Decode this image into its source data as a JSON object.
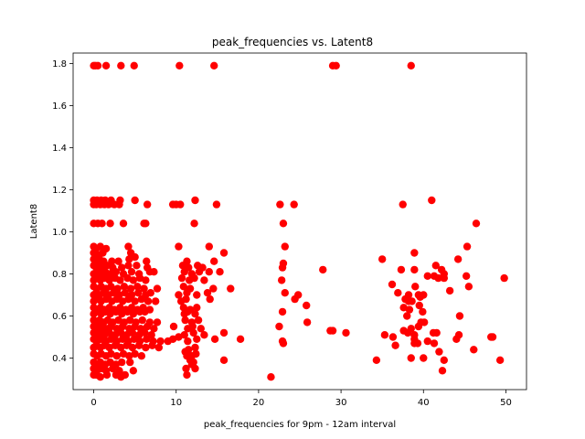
{
  "chart_data": {
    "type": "scatter",
    "title": "peak_frequencies vs. Latent8",
    "xlabel": "peak_frequencies for 9pm - 12am interval",
    "ylabel": "Latent8",
    "xlim": [
      -2.5,
      52.5
    ],
    "ylim": [
      0.25,
      1.85
    ],
    "xticks": [
      0,
      10,
      20,
      30,
      40,
      50
    ],
    "yticks": [
      0.4,
      0.6,
      0.8,
      1.0,
      1.2,
      1.4,
      1.6,
      1.8
    ],
    "grid": false,
    "marker_color": "#ff0000",
    "points": [
      [
        0,
        1.79
      ],
      [
        0.2,
        1.79
      ],
      [
        0.5,
        1.79
      ],
      [
        1.5,
        1.79
      ],
      [
        3.3,
        1.79
      ],
      [
        4.9,
        1.79
      ],
      [
        10.4,
        1.79
      ],
      [
        14.6,
        1.79
      ],
      [
        29,
        1.79
      ],
      [
        29.4,
        1.79
      ],
      [
        38.5,
        1.79
      ],
      [
        0,
        1.15
      ],
      [
        0.4,
        1.15
      ],
      [
        0.9,
        1.15
      ],
      [
        1.4,
        1.15
      ],
      [
        2.1,
        1.15
      ],
      [
        3.2,
        1.15
      ],
      [
        5,
        1.15
      ],
      [
        12.3,
        1.15
      ],
      [
        41,
        1.15
      ],
      [
        0,
        1.13
      ],
      [
        0.3,
        1.13
      ],
      [
        0.8,
        1.13
      ],
      [
        1.3,
        1.13
      ],
      [
        1.8,
        1.13
      ],
      [
        2.5,
        1.13
      ],
      [
        3.1,
        1.13
      ],
      [
        6.5,
        1.13
      ],
      [
        9.6,
        1.13
      ],
      [
        10,
        1.13
      ],
      [
        10.5,
        1.13
      ],
      [
        14.9,
        1.13
      ],
      [
        22.6,
        1.13
      ],
      [
        24.3,
        1.13
      ],
      [
        37.5,
        1.13
      ],
      [
        0,
        1.04
      ],
      [
        0.5,
        1.04
      ],
      [
        1,
        1.04
      ],
      [
        2,
        1.04
      ],
      [
        3.6,
        1.04
      ],
      [
        6.1,
        1.04
      ],
      [
        6.3,
        1.04
      ],
      [
        12.2,
        1.04
      ],
      [
        23,
        1.04
      ],
      [
        46.4,
        1.04
      ],
      [
        0,
        0.93
      ],
      [
        0.3,
        0.92
      ],
      [
        0.8,
        0.93
      ],
      [
        1.5,
        0.92
      ],
      [
        4.2,
        0.93
      ],
      [
        10.3,
        0.93
      ],
      [
        14,
        0.93
      ],
      [
        23.2,
        0.93
      ],
      [
        45.3,
        0.93
      ],
      [
        0,
        0.9
      ],
      [
        0.5,
        0.89
      ],
      [
        1.1,
        0.9
      ],
      [
        4.5,
        0.9
      ],
      [
        5,
        0.88
      ],
      [
        15.8,
        0.9
      ],
      [
        38.9,
        0.9
      ],
      [
        0,
        0.87
      ],
      [
        0.3,
        0.86
      ],
      [
        0.7,
        0.87
      ],
      [
        1.2,
        0.86
      ],
      [
        2.2,
        0.86
      ],
      [
        3,
        0.86
      ],
      [
        4.3,
        0.87
      ],
      [
        6.4,
        0.86
      ],
      [
        11.3,
        0.86
      ],
      [
        14.6,
        0.86
      ],
      [
        23,
        0.85
      ],
      [
        35,
        0.87
      ],
      [
        41.5,
        0.84
      ],
      [
        44.2,
        0.87
      ],
      [
        0,
        0.84
      ],
      [
        0.3,
        0.83
      ],
      [
        0.6,
        0.84
      ],
      [
        1.1,
        0.83
      ],
      [
        1.6,
        0.84
      ],
      [
        2.3,
        0.83
      ],
      [
        3.4,
        0.83
      ],
      [
        4.2,
        0.84
      ],
      [
        5.2,
        0.84
      ],
      [
        6.5,
        0.83
      ],
      [
        10.8,
        0.84
      ],
      [
        11.5,
        0.83
      ],
      [
        12.6,
        0.84
      ],
      [
        13.2,
        0.83
      ],
      [
        22.9,
        0.83
      ],
      [
        27.8,
        0.82
      ],
      [
        37.3,
        0.82
      ],
      [
        38.9,
        0.82
      ],
      [
        42.2,
        0.82
      ],
      [
        0,
        0.8
      ],
      [
        0.4,
        0.81
      ],
      [
        0.9,
        0.8
      ],
      [
        1.4,
        0.81
      ],
      [
        2,
        0.8
      ],
      [
        2.7,
        0.81
      ],
      [
        3.6,
        0.8
      ],
      [
        4.6,
        0.81
      ],
      [
        5.5,
        0.8
      ],
      [
        6.8,
        0.81
      ],
      [
        7.3,
        0.81
      ],
      [
        11,
        0.81
      ],
      [
        11.9,
        0.8
      ],
      [
        12.8,
        0.81
      ],
      [
        14,
        0.81
      ],
      [
        15.3,
        0.81
      ],
      [
        41.3,
        0.79
      ],
      [
        42.5,
        0.8
      ],
      [
        45.2,
        0.79
      ],
      [
        0,
        0.77
      ],
      [
        0.3,
        0.78
      ],
      [
        0.8,
        0.77
      ],
      [
        1.3,
        0.78
      ],
      [
        1.9,
        0.77
      ],
      [
        2.6,
        0.78
      ],
      [
        3.2,
        0.77
      ],
      [
        4.1,
        0.78
      ],
      [
        4.8,
        0.77
      ],
      [
        5.6,
        0.78
      ],
      [
        6.3,
        0.77
      ],
      [
        10.7,
        0.78
      ],
      [
        11.6,
        0.77
      ],
      [
        12.2,
        0.78
      ],
      [
        13.4,
        0.77
      ],
      [
        22.8,
        0.77
      ],
      [
        40.5,
        0.79
      ],
      [
        41.8,
        0.78
      ],
      [
        42.5,
        0.78
      ],
      [
        49.8,
        0.78
      ],
      [
        0,
        0.74
      ],
      [
        0.4,
        0.73
      ],
      [
        0.9,
        0.74
      ],
      [
        1.5,
        0.73
      ],
      [
        2.1,
        0.74
      ],
      [
        2.9,
        0.73
      ],
      [
        3.7,
        0.74
      ],
      [
        4.5,
        0.73
      ],
      [
        5.3,
        0.74
      ],
      [
        6.1,
        0.73
      ],
      [
        7.7,
        0.73
      ],
      [
        10.9,
        0.74
      ],
      [
        11.7,
        0.73
      ],
      [
        14.5,
        0.73
      ],
      [
        16.6,
        0.73
      ],
      [
        36.2,
        0.75
      ],
      [
        39,
        0.74
      ],
      [
        43.2,
        0.72
      ],
      [
        45.5,
        0.74
      ],
      [
        0,
        0.7
      ],
      [
        0.3,
        0.71
      ],
      [
        0.7,
        0.7
      ],
      [
        1.2,
        0.71
      ],
      [
        1.8,
        0.7
      ],
      [
        2.4,
        0.71
      ],
      [
        3.1,
        0.7
      ],
      [
        3.8,
        0.71
      ],
      [
        4.6,
        0.7
      ],
      [
        5.4,
        0.71
      ],
      [
        6.3,
        0.7
      ],
      [
        6.9,
        0.71
      ],
      [
        10.3,
        0.7
      ],
      [
        11.3,
        0.71
      ],
      [
        12.5,
        0.7
      ],
      [
        13.8,
        0.71
      ],
      [
        23.2,
        0.71
      ],
      [
        24.8,
        0.7
      ],
      [
        36.9,
        0.71
      ],
      [
        38.2,
        0.7
      ],
      [
        39.4,
        0.7
      ],
      [
        40,
        0.7
      ],
      [
        0,
        0.67
      ],
      [
        0.4,
        0.68
      ],
      [
        0.9,
        0.67
      ],
      [
        1.5,
        0.68
      ],
      [
        2.2,
        0.67
      ],
      [
        2.8,
        0.68
      ],
      [
        3.5,
        0.67
      ],
      [
        4.2,
        0.68
      ],
      [
        5,
        0.67
      ],
      [
        5.8,
        0.68
      ],
      [
        6.6,
        0.67
      ],
      [
        7.5,
        0.67
      ],
      [
        10.6,
        0.67
      ],
      [
        11.2,
        0.68
      ],
      [
        14.1,
        0.68
      ],
      [
        24.4,
        0.68
      ],
      [
        37.8,
        0.68
      ],
      [
        38.2,
        0.67
      ],
      [
        38.6,
        0.67
      ],
      [
        39.6,
        0.69
      ],
      [
        0,
        0.64
      ],
      [
        0.3,
        0.63
      ],
      [
        0.8,
        0.64
      ],
      [
        1.3,
        0.63
      ],
      [
        1.9,
        0.64
      ],
      [
        2.5,
        0.63
      ],
      [
        3.2,
        0.64
      ],
      [
        3.9,
        0.63
      ],
      [
        4.6,
        0.64
      ],
      [
        5.3,
        0.63
      ],
      [
        6,
        0.64
      ],
      [
        6.8,
        0.63
      ],
      [
        10.9,
        0.64
      ],
      [
        11.7,
        0.63
      ],
      [
        12.5,
        0.64
      ],
      [
        25.8,
        0.65
      ],
      [
        37.6,
        0.64
      ],
      [
        38.3,
        0.63
      ],
      [
        39.5,
        0.65
      ],
      [
        0,
        0.61
      ],
      [
        0.4,
        0.62
      ],
      [
        0.9,
        0.61
      ],
      [
        1.4,
        0.62
      ],
      [
        2,
        0.61
      ],
      [
        2.7,
        0.62
      ],
      [
        3.4,
        0.61
      ],
      [
        4.1,
        0.62
      ],
      [
        4.8,
        0.61
      ],
      [
        5.6,
        0.62
      ],
      [
        6.2,
        0.62
      ],
      [
        11,
        0.61
      ],
      [
        11.4,
        0.62
      ],
      [
        12.3,
        0.61
      ],
      [
        22.9,
        0.62
      ],
      [
        38,
        0.6
      ],
      [
        39.9,
        0.62
      ],
      [
        44.4,
        0.6
      ],
      [
        0,
        0.58
      ],
      [
        0.3,
        0.57
      ],
      [
        0.7,
        0.58
      ],
      [
        1.2,
        0.57
      ],
      [
        1.7,
        0.58
      ],
      [
        2.3,
        0.57
      ],
      [
        3,
        0.58
      ],
      [
        3.7,
        0.57
      ],
      [
        4.4,
        0.58
      ],
      [
        5.1,
        0.57
      ],
      [
        5.9,
        0.58
      ],
      [
        6.8,
        0.57
      ],
      [
        7.7,
        0.57
      ],
      [
        11.1,
        0.58
      ],
      [
        11.9,
        0.57
      ],
      [
        12.7,
        0.58
      ],
      [
        25.9,
        0.57
      ],
      [
        39.7,
        0.57
      ],
      [
        40.1,
        0.57
      ],
      [
        0,
        0.55
      ],
      [
        0.4,
        0.54
      ],
      [
        0.9,
        0.55
      ],
      [
        1.5,
        0.54
      ],
      [
        2.1,
        0.55
      ],
      [
        2.8,
        0.54
      ],
      [
        3.5,
        0.55
      ],
      [
        4.3,
        0.54
      ],
      [
        5,
        0.55
      ],
      [
        5.7,
        0.54
      ],
      [
        6.5,
        0.55
      ],
      [
        7.3,
        0.54
      ],
      [
        9.7,
        0.55
      ],
      [
        11.4,
        0.54
      ],
      [
        12,
        0.55
      ],
      [
        13,
        0.54
      ],
      [
        22.5,
        0.55
      ],
      [
        28.7,
        0.53
      ],
      [
        29,
        0.53
      ],
      [
        38.5,
        0.54
      ],
      [
        39.4,
        0.55
      ],
      [
        0,
        0.52
      ],
      [
        0.3,
        0.51
      ],
      [
        0.8,
        0.52
      ],
      [
        1.3,
        0.51
      ],
      [
        1.9,
        0.52
      ],
      [
        2.6,
        0.51
      ],
      [
        3.3,
        0.52
      ],
      [
        4,
        0.51
      ],
      [
        4.7,
        0.52
      ],
      [
        5.5,
        0.51
      ],
      [
        6.2,
        0.52
      ],
      [
        7,
        0.51
      ],
      [
        11,
        0.51
      ],
      [
        12.1,
        0.52
      ],
      [
        13.4,
        0.51
      ],
      [
        15.8,
        0.52
      ],
      [
        30.6,
        0.52
      ],
      [
        35.3,
        0.51
      ],
      [
        37.6,
        0.53
      ],
      [
        38.1,
        0.52
      ],
      [
        38.9,
        0.51
      ],
      [
        41.2,
        0.52
      ],
      [
        41.6,
        0.52
      ],
      [
        44.3,
        0.51
      ],
      [
        48.2,
        0.5
      ],
      [
        0,
        0.49
      ],
      [
        0.4,
        0.48
      ],
      [
        0.9,
        0.49
      ],
      [
        1.5,
        0.48
      ],
      [
        2.1,
        0.49
      ],
      [
        2.8,
        0.48
      ],
      [
        3.5,
        0.49
      ],
      [
        4.2,
        0.48
      ],
      [
        4.9,
        0.49
      ],
      [
        5.6,
        0.48
      ],
      [
        6.4,
        0.49
      ],
      [
        7.2,
        0.48
      ],
      [
        8.1,
        0.48
      ],
      [
        9,
        0.48
      ],
      [
        9.6,
        0.49
      ],
      [
        10.3,
        0.5
      ],
      [
        11.4,
        0.48
      ],
      [
        12.5,
        0.49
      ],
      [
        14.7,
        0.49
      ],
      [
        17.8,
        0.49
      ],
      [
        22.9,
        0.48
      ],
      [
        23,
        0.47
      ],
      [
        36.3,
        0.5
      ],
      [
        38.9,
        0.49
      ],
      [
        40.5,
        0.48
      ],
      [
        41.3,
        0.47
      ],
      [
        44,
        0.49
      ],
      [
        48.4,
        0.5
      ],
      [
        0,
        0.45
      ],
      [
        0.3,
        0.46
      ],
      [
        0.8,
        0.45
      ],
      [
        1.3,
        0.46
      ],
      [
        1.9,
        0.45
      ],
      [
        2.6,
        0.46
      ],
      [
        3.3,
        0.45
      ],
      [
        4,
        0.46
      ],
      [
        4.7,
        0.45
      ],
      [
        5.5,
        0.46
      ],
      [
        6.3,
        0.45
      ],
      [
        7.1,
        0.46
      ],
      [
        7.9,
        0.45
      ],
      [
        11.1,
        0.43
      ],
      [
        11.5,
        0.44
      ],
      [
        12.3,
        0.45
      ],
      [
        36.6,
        0.46
      ],
      [
        38.9,
        0.47
      ],
      [
        39.3,
        0.47
      ],
      [
        41.9,
        0.43
      ],
      [
        46.1,
        0.44
      ],
      [
        0,
        0.42
      ],
      [
        0.4,
        0.41
      ],
      [
        0.9,
        0.42
      ],
      [
        1.5,
        0.41
      ],
      [
        2.1,
        0.42
      ],
      [
        2.8,
        0.41
      ],
      [
        3.6,
        0.42
      ],
      [
        4.3,
        0.41
      ],
      [
        5,
        0.42
      ],
      [
        5.8,
        0.41
      ],
      [
        11.3,
        0.41
      ],
      [
        11.9,
        0.41
      ],
      [
        12.4,
        0.42
      ],
      [
        15.8,
        0.39
      ],
      [
        34.3,
        0.39
      ],
      [
        38.5,
        0.4
      ],
      [
        40,
        0.4
      ],
      [
        42.5,
        0.39
      ],
      [
        49.3,
        0.39
      ],
      [
        0,
        0.38
      ],
      [
        0.3,
        0.37
      ],
      [
        0.8,
        0.38
      ],
      [
        1.4,
        0.37
      ],
      [
        2,
        0.38
      ],
      [
        2.7,
        0.37
      ],
      [
        3.4,
        0.38
      ],
      [
        4.4,
        0.38
      ],
      [
        11.7,
        0.39
      ],
      [
        11.9,
        0.37
      ],
      [
        12.1,
        0.38
      ],
      [
        0,
        0.35
      ],
      [
        0.4,
        0.34
      ],
      [
        0.9,
        0.35
      ],
      [
        1.5,
        0.34
      ],
      [
        2.3,
        0.35
      ],
      [
        3.1,
        0.34
      ],
      [
        4.8,
        0.34
      ],
      [
        11.2,
        0.35
      ],
      [
        12.3,
        0.35
      ],
      [
        42.3,
        0.34
      ],
      [
        0,
        0.32
      ],
      [
        0.3,
        0.32
      ],
      [
        0.8,
        0.31
      ],
      [
        1.6,
        0.32
      ],
      [
        2.7,
        0.32
      ],
      [
        3.3,
        0.31
      ],
      [
        3.8,
        0.32
      ],
      [
        11.3,
        0.32
      ],
      [
        21.5,
        0.31
      ]
    ]
  }
}
